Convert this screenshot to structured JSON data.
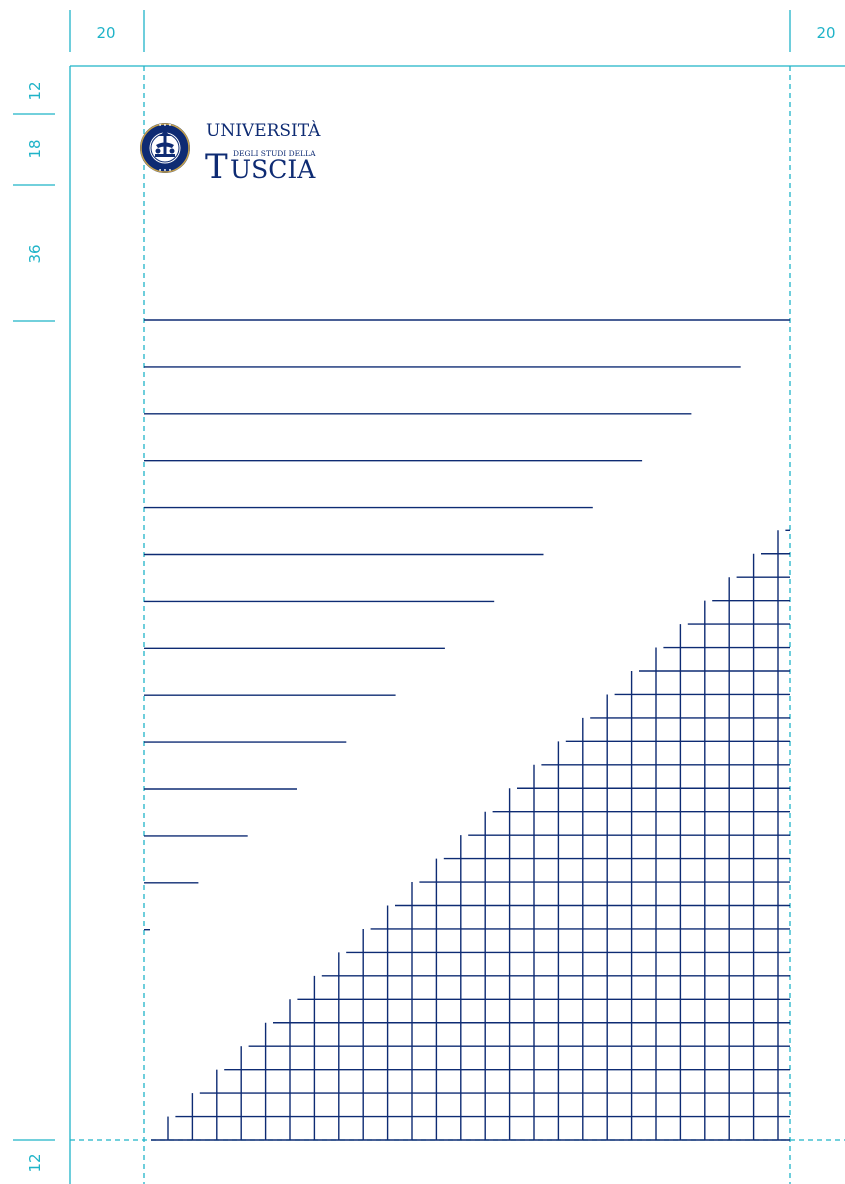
{
  "colors": {
    "guide": "#1fb3c8",
    "brand": "#0e2b73",
    "seal_gold": "#c7a24a"
  },
  "margins": {
    "left_label": "20",
    "right_label": "20",
    "top_label": "12",
    "logo_label": "18",
    "space_label": "36",
    "bottom_label": "12"
  },
  "logo": {
    "line1": "UNIVERSITÀ",
    "line2": "DEGLI STUDI DELLA",
    "line3_initial": "T",
    "line3_rest": "USCIA"
  },
  "pattern": {
    "stepped_lines": 14,
    "grid_rows": 27
  }
}
